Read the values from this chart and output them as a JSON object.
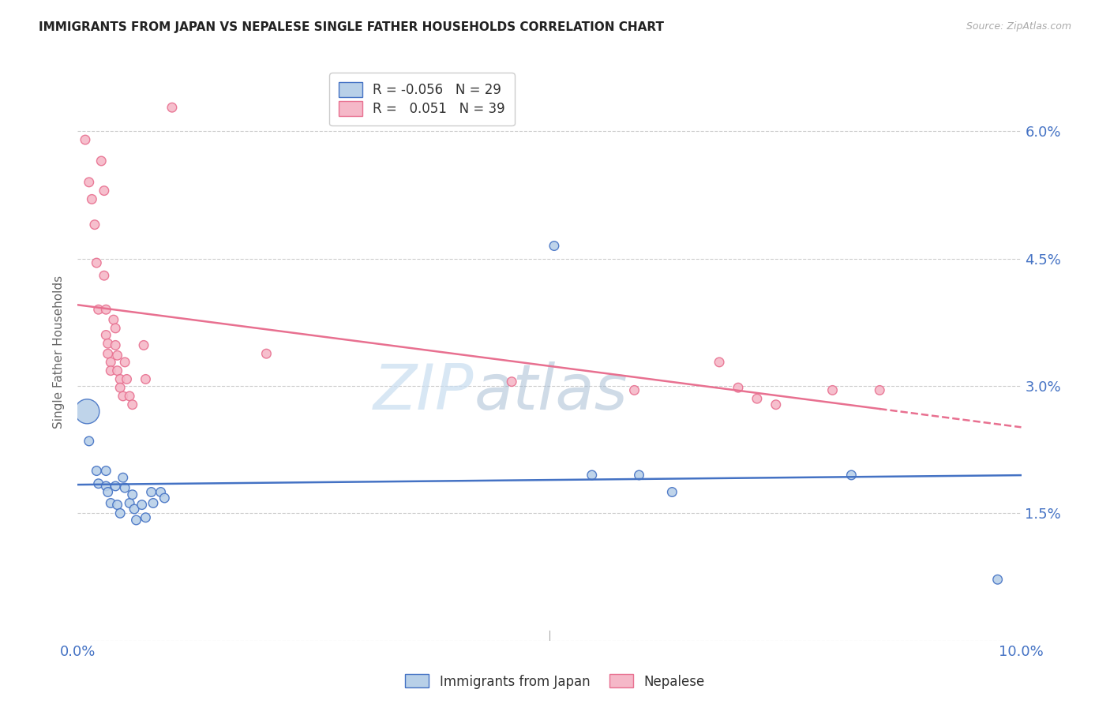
{
  "title": "IMMIGRANTS FROM JAPAN VS NEPALESE SINGLE FATHER HOUSEHOLDS CORRELATION CHART",
  "source": "Source: ZipAtlas.com",
  "xlabel_japan": "Immigrants from Japan",
  "xlabel_nepalese": "Nepalese",
  "ylabel": "Single Father Households",
  "xlim": [
    0.0,
    0.1
  ],
  "ylim": [
    0.0,
    0.068
  ],
  "xticks": [
    0.0,
    0.01,
    0.02,
    0.03,
    0.04,
    0.05,
    0.06,
    0.07,
    0.08,
    0.09,
    0.1
  ],
  "xtick_labels": [
    "0.0%",
    "",
    "",
    "",
    "",
    "",
    "",
    "",
    "",
    "",
    "10.0%"
  ],
  "ytick_right_vals": [
    0.0,
    0.015,
    0.03,
    0.045,
    0.06
  ],
  "ytick_right_labels": [
    "",
    "1.5%",
    "3.0%",
    "4.5%",
    "6.0%"
  ],
  "legend_r_japan": "-0.056",
  "legend_n_japan": "29",
  "legend_r_nepalese": "0.051",
  "legend_n_nepalese": "39",
  "japan_color": "#b8d0e8",
  "nepalese_color": "#f5b8c8",
  "japan_line_color": "#4472c4",
  "nepalese_line_color": "#e87090",
  "grid_color": "#cccccc",
  "title_color": "#222222",
  "axis_label_color": "#4472c4",
  "watermark_zip": "ZIP",
  "watermark_atlas": "atlas",
  "japan_points": [
    [
      0.001,
      0.027
    ],
    [
      0.0012,
      0.0235
    ],
    [
      0.002,
      0.02
    ],
    [
      0.0022,
      0.0185
    ],
    [
      0.003,
      0.02
    ],
    [
      0.003,
      0.0182
    ],
    [
      0.0032,
      0.0175
    ],
    [
      0.0035,
      0.0162
    ],
    [
      0.004,
      0.0182
    ],
    [
      0.0042,
      0.016
    ],
    [
      0.0045,
      0.015
    ],
    [
      0.0048,
      0.0192
    ],
    [
      0.005,
      0.018
    ],
    [
      0.0055,
      0.0162
    ],
    [
      0.0058,
      0.0172
    ],
    [
      0.006,
      0.0155
    ],
    [
      0.0062,
      0.0142
    ],
    [
      0.0068,
      0.016
    ],
    [
      0.0072,
      0.0145
    ],
    [
      0.0078,
      0.0175
    ],
    [
      0.008,
      0.0162
    ],
    [
      0.0088,
      0.0175
    ],
    [
      0.0092,
      0.0168
    ],
    [
      0.0505,
      0.0465
    ],
    [
      0.0545,
      0.0195
    ],
    [
      0.0595,
      0.0195
    ],
    [
      0.063,
      0.0175
    ],
    [
      0.082,
      0.0195
    ],
    [
      0.0975,
      0.0072
    ]
  ],
  "japan_big_idx": 0,
  "nepalese_points": [
    [
      0.0008,
      0.059
    ],
    [
      0.0012,
      0.054
    ],
    [
      0.0015,
      0.052
    ],
    [
      0.0018,
      0.049
    ],
    [
      0.002,
      0.0445
    ],
    [
      0.0022,
      0.039
    ],
    [
      0.0025,
      0.0565
    ],
    [
      0.0028,
      0.053
    ],
    [
      0.0028,
      0.043
    ],
    [
      0.003,
      0.039
    ],
    [
      0.003,
      0.036
    ],
    [
      0.0032,
      0.035
    ],
    [
      0.0032,
      0.0338
    ],
    [
      0.0035,
      0.0328
    ],
    [
      0.0035,
      0.0318
    ],
    [
      0.0038,
      0.0378
    ],
    [
      0.004,
      0.0368
    ],
    [
      0.004,
      0.0348
    ],
    [
      0.0042,
      0.0336
    ],
    [
      0.0042,
      0.0318
    ],
    [
      0.0045,
      0.0308
    ],
    [
      0.0045,
      0.0298
    ],
    [
      0.0048,
      0.0288
    ],
    [
      0.005,
      0.0328
    ],
    [
      0.0052,
      0.0308
    ],
    [
      0.0055,
      0.0288
    ],
    [
      0.0058,
      0.0278
    ],
    [
      0.007,
      0.0348
    ],
    [
      0.0072,
      0.0308
    ],
    [
      0.01,
      0.0628
    ],
    [
      0.02,
      0.0338
    ],
    [
      0.046,
      0.0305
    ],
    [
      0.059,
      0.0295
    ],
    [
      0.068,
      0.0328
    ],
    [
      0.07,
      0.0298
    ],
    [
      0.072,
      0.0285
    ],
    [
      0.074,
      0.0278
    ],
    [
      0.08,
      0.0295
    ],
    [
      0.085,
      0.0295
    ]
  ]
}
